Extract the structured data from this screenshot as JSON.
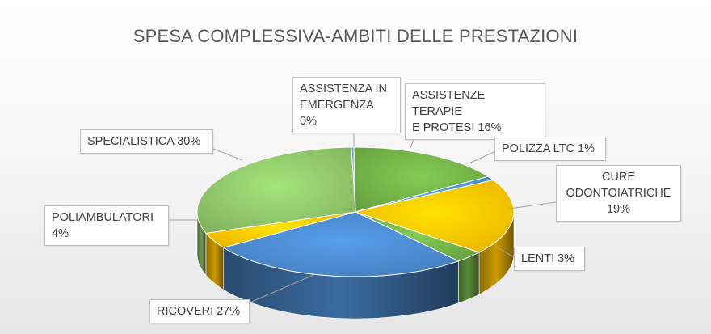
{
  "chart_data": {
    "type": "pie",
    "title": "SPESA COMPLESSIVA-AMBITI DELLE PRESTAZIONI",
    "slices": [
      {
        "label": "ASSISTENZA IN EMERGENZA",
        "value": 0,
        "display": "0%",
        "color": "#5b9bd5"
      },
      {
        "label": "ASSISTENZE TERAPIE E PROTESI",
        "value": 16,
        "display": "16%",
        "color": "#70ad47"
      },
      {
        "label": "POLIZZA LTC",
        "value": 1,
        "display": "1%",
        "color": "#4a8fcf"
      },
      {
        "label": "CURE ODONTOIATRICHE",
        "value": 19,
        "display": "19%",
        "color": "#ffc000"
      },
      {
        "label": "LENTI",
        "value": 3,
        "display": "3%",
        "color": "#70ad47"
      },
      {
        "label": "RICOVERI",
        "value": 27,
        "display": "27%",
        "color": "#4a86c8"
      },
      {
        "label": "POLIAMBULATORI",
        "value": 4,
        "display": "4%",
        "color": "#ffc000"
      },
      {
        "label": "SPECIALISTICA",
        "value": 30,
        "display": "30%",
        "color": "#8cc168"
      }
    ]
  },
  "labels": {
    "emergenza": [
      "ASSISTENZA IN",
      "EMERGENZA 0%"
    ],
    "terapie": [
      "ASSISTENZE TERAPIE",
      "E PROTESI 16%"
    ],
    "ltc": [
      "POLIZZA LTC 1%"
    ],
    "odonto": [
      "CURE",
      "ODONTOIATRICHE",
      "19%"
    ],
    "lenti": [
      "LENTI 3%"
    ],
    "ricoveri": [
      "RICOVERI 27%"
    ],
    "poliamb": [
      "POLIAMBULATORI",
      "4%"
    ],
    "specialistica": [
      "SPECIALISTICA 30%"
    ]
  }
}
